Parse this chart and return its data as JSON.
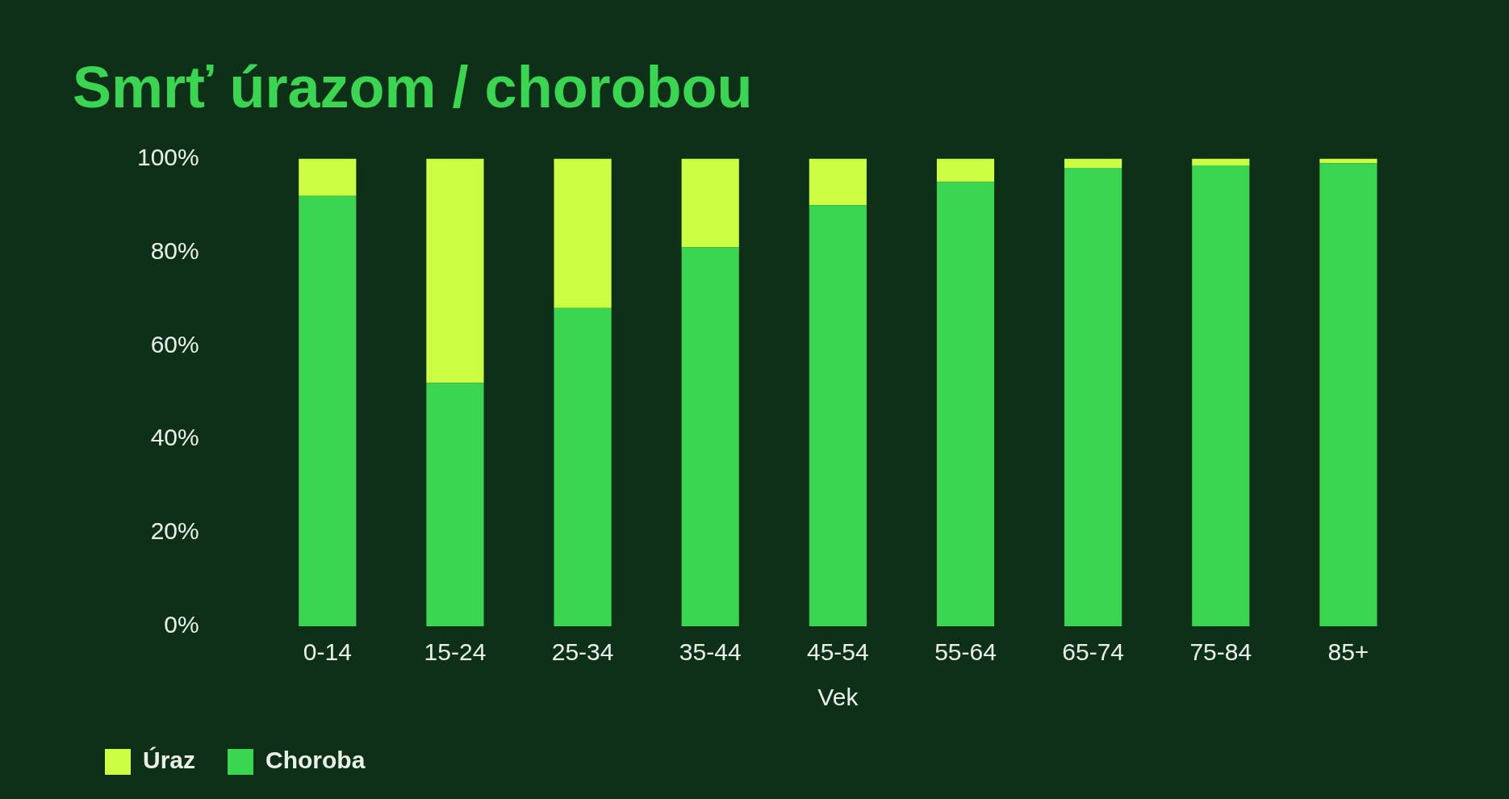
{
  "chart_data": {
    "type": "bar",
    "title": "Smrť úrazom / chorobou",
    "xlabel": "Vek",
    "categories": [
      "0-14",
      "15-24",
      "25-34",
      "35-44",
      "45-54",
      "55-64",
      "65-74",
      "75-84",
      "85+"
    ],
    "stacked": true,
    "series": [
      {
        "name": "Choroba",
        "color": "#3ad651",
        "values": [
          92,
          52,
          68,
          81,
          90,
          95,
          98,
          98.5,
          99
        ]
      },
      {
        "name": "Úraz",
        "color": "#ccff44",
        "values": [
          8,
          48,
          32,
          19,
          10,
          5,
          2,
          1.5,
          1
        ]
      }
    ],
    "ylim": [
      0,
      100
    ],
    "yticks": [
      {
        "value": 0,
        "label": "0%"
      },
      {
        "value": 20,
        "label": "20%"
      },
      {
        "value": 40,
        "label": "40%"
      },
      {
        "value": 60,
        "label": "60%"
      },
      {
        "value": 80,
        "label": "80%"
      },
      {
        "value": 100,
        "label": "100%"
      }
    ],
    "grid": false,
    "legend": "bottom left"
  }
}
